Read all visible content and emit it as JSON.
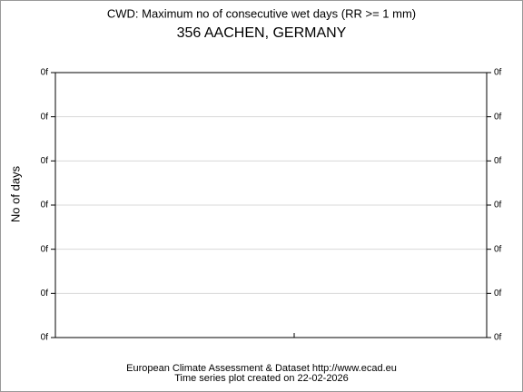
{
  "chart_data": {
    "type": "line",
    "title": "CWD: Maximum no of consecutive wet days (RR >= 1 mm)",
    "subtitle": "356 AACHEN, GERMANY",
    "y_label": "No of days",
    "footer": [
      "European Climate Assessment & Dataset  http://www.ecad.eu",
      "Time series plot created on 22-02-2026"
    ],
    "ylim": [
      0,
      6
    ],
    "yticks": [
      {
        "value": 0,
        "label": "0f"
      },
      {
        "value": 1,
        "label": "0f"
      },
      {
        "value": 2,
        "label": "0f"
      },
      {
        "value": 3,
        "label": "0f"
      },
      {
        "value": 4,
        "label": "0f"
      },
      {
        "value": 5,
        "label": "0f"
      },
      {
        "value": 6,
        "label": "0f"
      }
    ],
    "grid": true
  }
}
